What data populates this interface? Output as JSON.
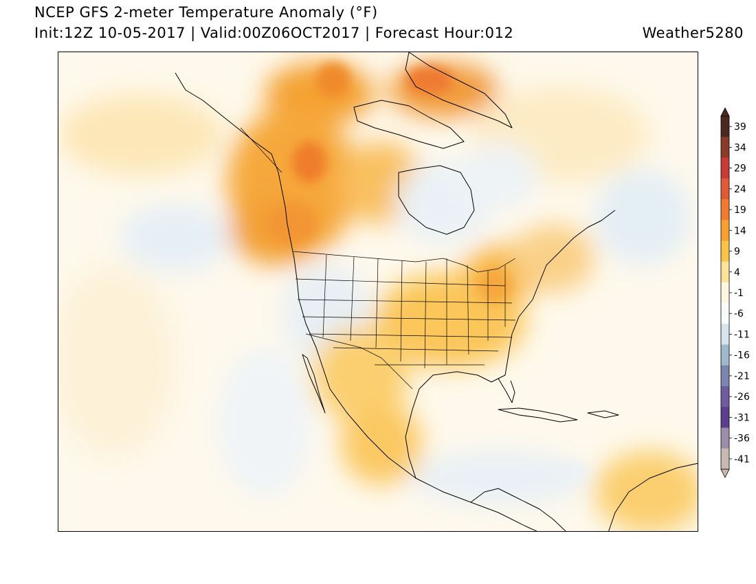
{
  "header": {
    "title": "NCEP GFS 2-meter Temperature Anomaly (°F)",
    "subtitle": "Init:12Z 10-05-2017 | Valid:00Z06OCT2017 | Forecast Hour:012",
    "brand": "Weather5280"
  },
  "colorbar": {
    "labels": [
      "39",
      "34",
      "29",
      "24",
      "19",
      "14",
      "9",
      "4",
      "-1",
      "-6",
      "-11",
      "-16",
      "-21",
      "-26",
      "-31",
      "-36",
      "-41"
    ],
    "colors": [
      "#4a2a20",
      "#8a3a28",
      "#c83a38",
      "#e05a38",
      "#f07a30",
      "#f5a030",
      "#fbc348",
      "#fde39a",
      "#fff6e2",
      "#f8fafc",
      "#d6e4ee",
      "#9fb8cc",
      "#7a86ae",
      "#6e5c9e",
      "#5c3e8e",
      "#9a8ea8",
      "#c8b8b0"
    ]
  },
  "map_regions": {
    "warm": [
      "canada-west",
      "alaska",
      "greenland",
      "eastern-us"
    ],
    "cool": [
      "hudson-bay",
      "us-west",
      "north-pacific",
      "central-america"
    ]
  }
}
